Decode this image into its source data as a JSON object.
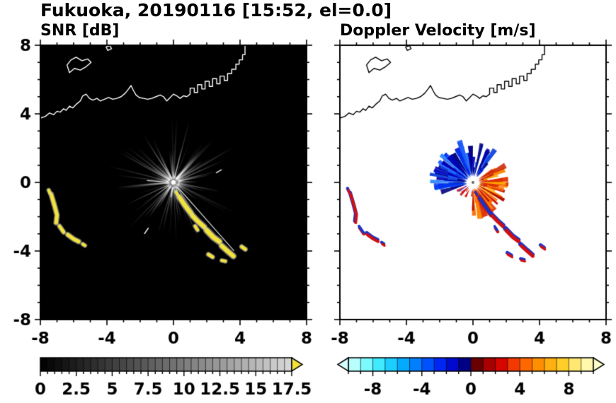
{
  "title": "Fukuoka, 20190116 [15:52, el=0.0]",
  "panels": {
    "snr_label": "SNR [dB]",
    "doppler_label": "Doppler Velocity [m/s]"
  },
  "chart_data": [
    {
      "type": "heatmap",
      "name": "snr-ppi",
      "title": "SNR [dB]",
      "xlim": [
        -8,
        8
      ],
      "ylim": [
        -8,
        8
      ],
      "xticks": [
        -8,
        -4,
        0,
        4,
        8
      ],
      "yticks": [
        -8,
        -4,
        0,
        4,
        8
      ],
      "minor_tick_step": 1,
      "background": "#000000",
      "coast_color": "#ffffff",
      "colorbar": {
        "range": [
          0,
          17.5
        ],
        "tick_values": [
          0,
          2.5,
          5,
          7.5,
          10,
          12.5,
          15,
          17.5
        ],
        "tick_labels": [
          "0",
          "2.5",
          "5",
          "7.5",
          "10",
          "12.5",
          "15",
          "17.5"
        ],
        "minor_step": 0.5,
        "segments": 35,
        "stops": [
          [
            0,
            "#000000"
          ],
          [
            1,
            "#d8d8d8"
          ]
        ],
        "over_arrow_color": "#f2e23c"
      },
      "features": {
        "streaks": {
          "seed": 11,
          "count": 135,
          "color": "#ffffff"
        },
        "bright_rays": [
          [
            -48.5,
            0.35,
            5.5
          ],
          [
            176,
            0.3,
            1.6
          ],
          [
            -100,
            0.3,
            0.9
          ]
        ],
        "dashes": [
          [
            -1.75,
            -3.0,
            -1.5,
            -2.65
          ],
          [
            2.55,
            0.55,
            2.9,
            0.75
          ]
        ],
        "echo_color": "#f2e23c",
        "echo_halo": "#c8c8c8",
        "echoes": [
          {
            "w": 0.22,
            "pts": [
              [
                -7.35,
                -0.7
              ],
              [
                -7.15,
                -1.35
              ],
              [
                -7.0,
                -1.9
              ],
              [
                -7.05,
                -2.35
              ]
            ]
          },
          {
            "w": 0.2,
            "pts": [
              [
                -6.85,
                -2.55
              ],
              [
                -6.6,
                -2.9
              ]
            ]
          },
          {
            "w": 0.22,
            "pts": [
              [
                -6.35,
                -3.05
              ],
              [
                -6.0,
                -3.3
              ],
              [
                -5.7,
                -3.45
              ]
            ]
          },
          {
            "w": 0.18,
            "pts": [
              [
                -7.5,
                -0.45
              ],
              [
                -7.42,
                -0.62
              ]
            ]
          },
          {
            "w": 0.18,
            "pts": [
              [
                -5.45,
                -3.6
              ],
              [
                -5.32,
                -3.68
              ]
            ]
          },
          {
            "w": 0.26,
            "pts": [
              [
                0.35,
                -0.85
              ],
              [
                0.7,
                -1.35
              ],
              [
                1.05,
                -1.8
              ]
            ]
          },
          {
            "w": 0.26,
            "pts": [
              [
                1.15,
                -1.95
              ],
              [
                1.5,
                -2.3
              ],
              [
                1.85,
                -2.6
              ]
            ]
          },
          {
            "w": 0.28,
            "pts": [
              [
                2.0,
                -2.8
              ],
              [
                2.4,
                -3.2
              ],
              [
                2.75,
                -3.45
              ]
            ]
          },
          {
            "w": 0.26,
            "pts": [
              [
                2.9,
                -3.7
              ],
              [
                3.3,
                -4.05
              ],
              [
                3.6,
                -4.3
              ]
            ]
          },
          {
            "w": 0.18,
            "pts": [
              [
                1.3,
                -2.55
              ],
              [
                1.45,
                -2.78
              ]
            ]
          },
          {
            "w": 0.2,
            "pts": [
              [
                2.1,
                -4.2
              ],
              [
                2.35,
                -4.35
              ]
            ]
          },
          {
            "w": 0.18,
            "pts": [
              [
                2.9,
                -4.55
              ],
              [
                3.12,
                -4.6
              ]
            ]
          },
          {
            "w": 0.2,
            "pts": [
              [
                4.1,
                -3.75
              ],
              [
                4.32,
                -3.9
              ]
            ]
          },
          {
            "w": 0.16,
            "pts": [
              [
                0.15,
                -0.55
              ],
              [
                0.25,
                -0.72
              ]
            ]
          }
        ]
      }
    },
    {
      "type": "heatmap",
      "name": "doppler-ppi",
      "title": "Doppler Velocity [m/s]",
      "xlim": [
        -8,
        8
      ],
      "ylim": [
        -8,
        8
      ],
      "xticks": [
        -8,
        -4,
        0,
        4,
        8
      ],
      "yticks": [
        -8,
        -4,
        0,
        4,
        8
      ],
      "minor_tick_step": 1,
      "background": "#ffffff",
      "coast_color": "#000000",
      "colorbar": {
        "range": [
          -10,
          10
        ],
        "tick_values": [
          -8,
          -4,
          0,
          4,
          8
        ],
        "tick_labels": [
          "-8",
          "-4",
          "0",
          "4",
          "8"
        ],
        "minor_step": 1,
        "segments": 20,
        "stops": [
          [
            0.0,
            "#d6ffff"
          ],
          [
            0.06,
            "#8cffff"
          ],
          [
            0.14,
            "#2ee6ff"
          ],
          [
            0.23,
            "#00a8ff"
          ],
          [
            0.32,
            "#0055ff"
          ],
          [
            0.4,
            "#0011ee"
          ],
          [
            0.46,
            "#0000a0"
          ],
          [
            0.495,
            "#000060"
          ],
          [
            0.505,
            "#4a0000"
          ],
          [
            0.55,
            "#900000"
          ],
          [
            0.62,
            "#d40000"
          ],
          [
            0.7,
            "#ff5500"
          ],
          [
            0.79,
            "#ff9900"
          ],
          [
            0.87,
            "#ffcc22"
          ],
          [
            0.94,
            "#ffee88"
          ],
          [
            1.0,
            "#ffffc8"
          ]
        ],
        "under_arrow": true,
        "over_arrow": true
      },
      "features": {
        "inner_radius": 0.32,
        "center_dot": "#666666",
        "sectors": [
          {
            "seed": 21,
            "n": 90,
            "a0": 50,
            "a1": 200,
            "rmin": 0.55,
            "rmax": 2.7,
            "colors": [
              "#0033ee",
              "#0000b4",
              "#2266ff",
              "#000080",
              "#1144dd",
              "#3388ff"
            ]
          },
          {
            "seed": 22,
            "n": 80,
            "a0": -95,
            "a1": 32,
            "rmin": 0.5,
            "rmax": 2.3,
            "colors": [
              "#ff6600",
              "#e03000",
              "#ff8800",
              "#b41000",
              "#ffaa00",
              "#cc2200"
            ]
          },
          {
            "seed": 23,
            "n": 7,
            "a0": 205,
            "a1": 245,
            "rmin": 0.5,
            "rmax": 1.1,
            "colors": [
              "#0033ee",
              "#d01010"
            ]
          }
        ],
        "echo_main": "#d01010",
        "echo_edge": "#1a33c8"
      }
    }
  ],
  "coastline": {
    "polylines": [
      [
        [
          -8.0,
          3.75
        ],
        [
          -7.7,
          3.85
        ],
        [
          -7.45,
          4.05
        ],
        [
          -7.2,
          3.95
        ],
        [
          -7.0,
          4.15
        ],
        [
          -6.8,
          4.1
        ],
        [
          -6.6,
          4.3
        ],
        [
          -6.45,
          4.2
        ],
        [
          -6.25,
          4.45
        ],
        [
          -6.05,
          4.35
        ],
        [
          -5.85,
          4.55
        ],
        [
          -5.6,
          4.75
        ],
        [
          -5.45,
          5.05
        ],
        [
          -5.25,
          5.15
        ],
        [
          -5.05,
          4.9
        ],
        [
          -4.85,
          4.8
        ],
        [
          -4.6,
          4.9
        ],
        [
          -4.4,
          4.75
        ],
        [
          -4.15,
          4.85
        ],
        [
          -3.9,
          4.95
        ],
        [
          -3.65,
          4.85
        ],
        [
          -3.4,
          4.9
        ],
        [
          -3.15,
          5.0
        ],
        [
          -2.9,
          5.2
        ],
        [
          -2.7,
          5.45
        ],
        [
          -2.55,
          5.65
        ],
        [
          -2.4,
          5.35
        ],
        [
          -2.25,
          5.1
        ],
        [
          -2.05,
          4.95
        ],
        [
          -1.8,
          4.9
        ],
        [
          -1.55,
          4.85
        ],
        [
          -1.3,
          4.9
        ],
        [
          -1.05,
          5.0
        ],
        [
          -0.8,
          5.1
        ],
        [
          -0.6,
          5.0
        ],
        [
          -0.4,
          4.75
        ],
        [
          -0.2,
          4.95
        ],
        [
          0.0,
          5.15
        ],
        [
          0.2,
          5.05
        ],
        [
          0.4,
          4.9
        ],
        [
          0.6,
          5.05
        ],
        [
          0.8,
          5.0
        ],
        [
          1.0,
          5.15
        ],
        [
          1.0,
          5.5
        ],
        [
          1.25,
          5.5
        ],
        [
          1.25,
          5.25
        ],
        [
          1.45,
          5.25
        ],
        [
          1.45,
          5.7
        ],
        [
          1.7,
          5.7
        ],
        [
          1.7,
          5.45
        ],
        [
          1.9,
          5.45
        ],
        [
          1.9,
          5.9
        ],
        [
          2.15,
          5.9
        ],
        [
          2.15,
          5.6
        ],
        [
          2.35,
          5.6
        ],
        [
          2.35,
          6.05
        ],
        [
          2.6,
          6.05
        ],
        [
          2.6,
          5.75
        ],
        [
          2.8,
          5.75
        ],
        [
          2.8,
          6.2
        ],
        [
          3.05,
          6.2
        ],
        [
          3.05,
          5.95
        ],
        [
          3.25,
          5.95
        ],
        [
          3.25,
          6.35
        ],
        [
          3.5,
          6.35
        ],
        [
          3.5,
          6.6
        ],
        [
          3.75,
          6.6
        ],
        [
          3.75,
          6.9
        ],
        [
          3.95,
          6.9
        ],
        [
          3.95,
          7.15
        ],
        [
          4.15,
          7.15
        ],
        [
          4.15,
          7.45
        ],
        [
          4.3,
          7.45
        ],
        [
          4.3,
          8.0
        ]
      ]
    ],
    "polygons": [
      [
        [
          -6.25,
          6.4
        ],
        [
          -5.95,
          6.65
        ],
        [
          -5.6,
          6.55
        ],
        [
          -5.25,
          6.75
        ],
        [
          -4.95,
          7.0
        ],
        [
          -5.15,
          7.2
        ],
        [
          -5.5,
          7.1
        ],
        [
          -5.85,
          7.3
        ],
        [
          -6.15,
          7.15
        ],
        [
          -6.4,
          6.85
        ]
      ],
      [
        [
          -3.95,
          7.7
        ],
        [
          -3.72,
          7.8
        ],
        [
          -3.82,
          7.98
        ],
        [
          -4.05,
          7.9
        ]
      ]
    ]
  }
}
